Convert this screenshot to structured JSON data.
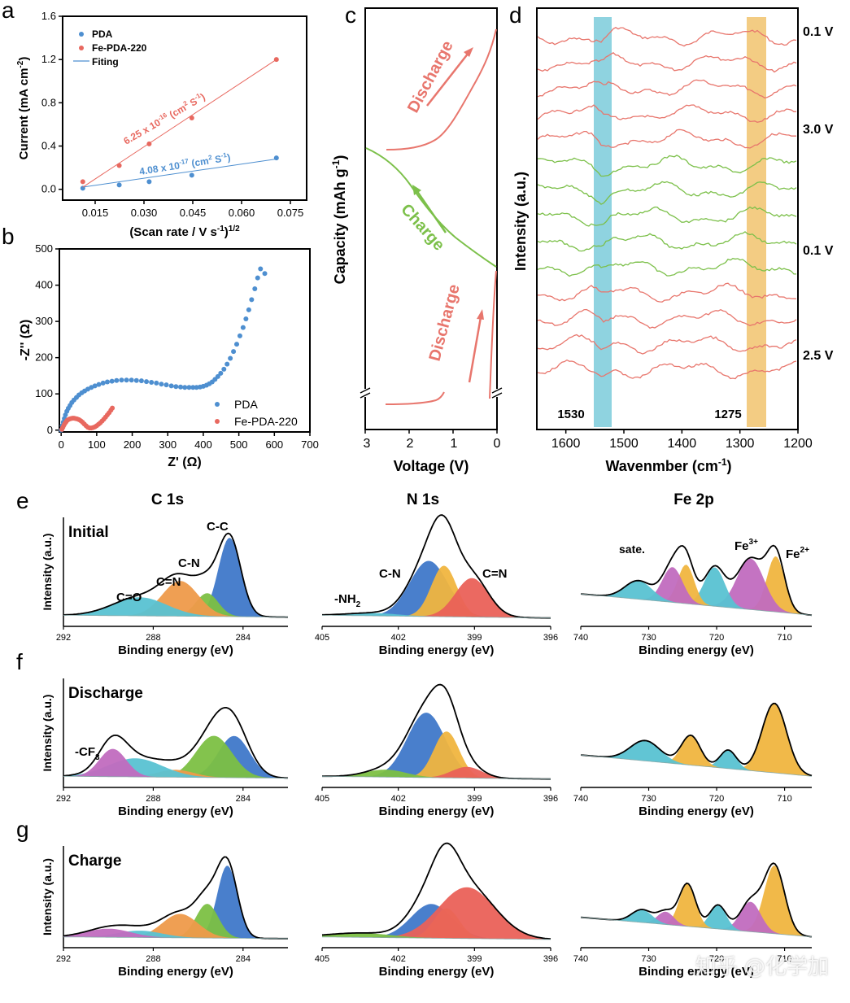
{
  "colors": {
    "blue_pts": "#4e8fd0",
    "red_pts": "#e8685f",
    "curve_red": "#e8766d",
    "curve_green": "#7cc04a",
    "band_blue": "#8fd3e0",
    "band_yellow": "#f3cc83",
    "peak_blue": "#3f78c9",
    "peak_green": "#7cc043",
    "peak_orange": "#ee9a4a",
    "peak_cyan": "#58c2d2",
    "peak_purple": "#c16bbf",
    "peak_red": "#ea6158",
    "peak_yellow": "#f0b53f"
  },
  "chart_data": [
    {
      "id": "a",
      "type": "scatter",
      "panel_label": "a",
      "ylabel": "Current (mA cm",
      "ylabel_sup": "-2",
      "ylabel_end": ")",
      "xlabel": "(Scan rate / V s",
      "xlabel_sup": "-1",
      "xlabel_end": ")",
      "xlabel_sup2": "1/2",
      "xlim": [
        0.005,
        0.08
      ],
      "ylim": [
        -0.1,
        1.6
      ],
      "xticks": [
        "0.015",
        "0.030",
        "0.045",
        "0.060",
        "0.075"
      ],
      "yticks": [
        "0.0",
        "0.4",
        "0.8",
        "1.2",
        "1.6"
      ],
      "legend": [
        "PDA",
        "Fe-PDA-220",
        "Fiting"
      ],
      "series": [
        {
          "name": "PDA",
          "x": [
            0.0112,
            0.0224,
            0.0316,
            0.0447,
            0.0707
          ],
          "y": [
            0.01,
            0.04,
            0.07,
            0.13,
            0.29
          ],
          "fit": [
            [
              0.0112,
              0.02
            ],
            [
              0.0707,
              0.28
            ]
          ]
        },
        {
          "name": "Fe-PDA-220",
          "x": [
            0.0112,
            0.0224,
            0.0316,
            0.0447,
            0.0707
          ],
          "y": [
            0.07,
            0.22,
            0.42,
            0.66,
            1.2
          ],
          "fit": [
            [
              0.0112,
              0.02
            ],
            [
              0.0707,
              1.2
            ]
          ]
        }
      ],
      "annotations": [
        {
          "text": "6.25 x 10",
          "sup": "-16",
          "tail": " (cm",
          "sup2": "2",
          "tail2": " S",
          "sup3": "-1",
          "end": ")"
        },
        {
          "text": "4.08 x 10",
          "sup": "-17",
          "tail": " (cm",
          "sup2": "2",
          "tail2": " S",
          "sup3": "-1",
          "end": ")"
        }
      ]
    },
    {
      "id": "b",
      "type": "scatter",
      "panel_label": "b",
      "ylabel": "-Z'' (Ω)",
      "xlabel": "Z' (Ω)",
      "xlim": [
        -5,
        700
      ],
      "ylim": [
        -5,
        500
      ],
      "xticks": [
        "0",
        "100",
        "200",
        "300",
        "400",
        "500",
        "600",
        "700"
      ],
      "yticks": [
        "0",
        "100",
        "200",
        "300",
        "400",
        "500"
      ],
      "legend": [
        "PDA",
        "Fe-PDA-220"
      ],
      "series": [
        {
          "name": "PDA",
          "x": [
            0,
            3,
            6,
            9,
            12,
            16,
            20,
            25,
            30,
            36,
            43,
            50,
            58,
            66,
            75,
            85,
            95,
            106,
            118,
            130,
            143,
            156,
            170,
            184,
            198,
            212,
            226,
            240,
            254,
            268,
            282,
            296,
            310,
            323,
            336,
            348,
            360,
            371,
            381,
            391,
            400,
            409,
            417,
            425,
            433,
            441,
            449,
            458,
            467,
            476,
            485,
            494,
            503,
            512,
            520,
            528,
            536,
            545,
            553,
            561,
            573
          ],
          "y": [
            0,
            12,
            22,
            32,
            42,
            52,
            60,
            68,
            76,
            83,
            90,
            97,
            103,
            108,
            113,
            118,
            122,
            126,
            130,
            133,
            135,
            137,
            138,
            138,
            138,
            137,
            136,
            134,
            132,
            130,
            127,
            125,
            122,
            120,
            119,
            118,
            118,
            118,
            118,
            119,
            121,
            124,
            128,
            133,
            140,
            148,
            157,
            168,
            182,
            198,
            217,
            237,
            260,
            283,
            307,
            332,
            360,
            390,
            420,
            445,
            432
          ]
        },
        {
          "name": "Fe-PDA-220",
          "x": [
            2,
            5,
            8,
            11,
            14,
            17,
            20,
            24,
            28,
            32,
            36,
            40,
            45,
            50,
            55,
            60,
            65,
            70,
            75,
            80,
            85,
            90,
            95,
            100,
            105,
            110,
            115,
            120,
            125,
            130,
            135,
            140,
            144
          ],
          "y": [
            2,
            8,
            14,
            19,
            23,
            27,
            29,
            31,
            32,
            33,
            33,
            32,
            31,
            29,
            26,
            22,
            17,
            12,
            8,
            6,
            6,
            7,
            9,
            12,
            16,
            20,
            25,
            30,
            36,
            42,
            48,
            55,
            61
          ]
        }
      ]
    },
    {
      "id": "c",
      "type": "line",
      "panel_label": "c",
      "ylabel": "Capacity (mAh g",
      "ylabel_sup": "-1",
      "ylabel_end": ")",
      "xlabel": "Voltage (V)",
      "xticks": [
        "3",
        "2",
        "1",
        "0"
      ],
      "annotations": [
        "Discharge",
        "Charge",
        "Discharge"
      ]
    },
    {
      "id": "d",
      "type": "line",
      "panel_label": "d",
      "ylabel": "Intensity (a.u.)",
      "xlabel": "Wavenmber (cm",
      "xlabel_sup": "-1",
      "xlabel_end": ")",
      "xlim": [
        1650,
        1200
      ],
      "xticks": [
        "1600",
        "1500",
        "1400",
        "1300",
        "1200"
      ],
      "band_labels": [
        "1530",
        "1275"
      ],
      "voltage_labels": [
        "0.1 V",
        "3.0 V",
        "0.1 V",
        "2.5 V"
      ],
      "n_spectra": 14
    }
  ],
  "xps": {
    "column_titles": [
      "C 1s",
      "N 1s",
      "Fe 2p"
    ],
    "row_labels": [
      "e",
      "f",
      "g"
    ],
    "row_titles": [
      "Initial",
      "Discharge",
      "Charge"
    ],
    "ylabel": "Intensity (a.u.)",
    "xlabel": "Binding energy (eV)",
    "c1s_ticks": [
      "292",
      "288",
      "284"
    ],
    "n1s_ticks": [
      "405",
      "402",
      "399",
      "396"
    ],
    "fe2p_ticks": [
      "740",
      "730",
      "720",
      "710"
    ],
    "c1s_labels": [
      "C=O",
      "C=N",
      "C-N",
      "C-C"
    ],
    "c1s_cf3": "-CF",
    "c1s_cf3_sub": "3",
    "n1s_labels": [
      "C-N",
      "C=N"
    ],
    "n1s_nh2": "-NH",
    "n1s_nh2_sub": "2",
    "fe_labels": [
      "sate.",
      "Fe",
      "Fe"
    ],
    "fe_sups": [
      "3+",
      "2+"
    ]
  },
  "watermark": "知乎 @化学加"
}
